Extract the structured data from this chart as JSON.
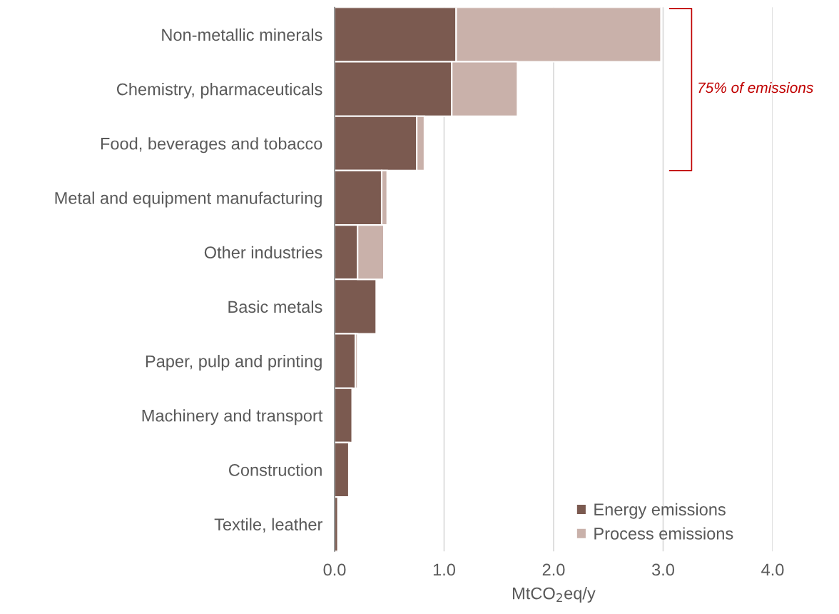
{
  "chart_data": {
    "type": "bar",
    "orientation": "horizontal",
    "stacked": true,
    "categories": [
      "Non-metallic minerals",
      "Chemistry, pharmaceuticals",
      "Food, beverages and tobacco",
      "Metal and equipment manufacturing",
      "Other industries",
      "Basic metals",
      "Paper, pulp and printing",
      "Machinery and transport",
      "Construction",
      "Textile, leather"
    ],
    "series": [
      {
        "name": "Energy emissions",
        "color": "#7b5a50",
        "values": [
          1.11,
          1.07,
          0.75,
          0.43,
          0.21,
          0.38,
          0.19,
          0.16,
          0.13,
          0.03
        ]
      },
      {
        "name": "Process emissions",
        "color": "#c9b1aa",
        "values": [
          1.87,
          0.6,
          0.07,
          0.05,
          0.24,
          null,
          0.02,
          null,
          null,
          null
        ]
      }
    ],
    "xlim": [
      0,
      4.0
    ],
    "xticks": [
      {
        "value": 0,
        "label": "0.0"
      },
      {
        "value": 1,
        "label": "1.0"
      },
      {
        "value": 2,
        "label": "2.0"
      },
      {
        "value": 3,
        "label": "3.0"
      },
      {
        "value": 4,
        "label": "4.0"
      }
    ],
    "xlabel": "MtCO$_{2}$eq/y",
    "annotations": [
      "75% of emissions"
    ],
    "grid": "x",
    "legend": "bottom right"
  }
}
